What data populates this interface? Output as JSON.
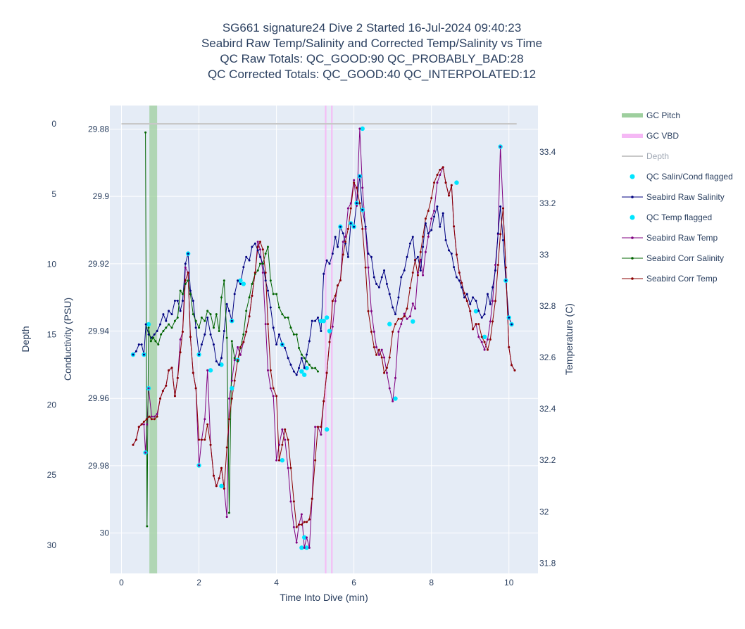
{
  "chart_data": {
    "type": "line",
    "title_lines": [
      "SG661 signature24 Dive 2 Started 16-Jul-2024 09:40:23",
      "Seabird Raw Temp/Salinity and Corrected Temp/Salinity vs Time",
      "QC Raw Totals: QC_GOOD:90 QC_PROBABLY_BAD:28",
      "QC Corrected Totals: QC_GOOD:40 QC_INTERPOLATED:12"
    ],
    "xlabel": "Time Into Dive (min)",
    "y_depth_label": "Depth",
    "y_cond_label": "Conductivity (PSU)",
    "y_temp_label": "Temperature (C)",
    "xlim": [
      -0.3,
      10.75
    ],
    "depth_lim": [
      32,
      -1.3
    ],
    "salinity_lim": [
      30.012,
      29.873
    ],
    "temp_lim": [
      31.76,
      33.58
    ],
    "x_ticks": [
      "0",
      "2",
      "4",
      "6",
      "8",
      "10"
    ],
    "depth_ticks": [
      "0",
      "5",
      "10",
      "15",
      "20",
      "25",
      "30"
    ],
    "salinity_ticks": [
      "29.88",
      "29.9",
      "29.92",
      "29.94",
      "29.96",
      "29.98",
      "30"
    ],
    "temp_ticks": [
      "31.8",
      "32",
      "32.2",
      "32.4",
      "32.6",
      "32.8",
      "33",
      "33.2",
      "33.4"
    ],
    "grid": true,
    "legend_position": "right",
    "legend": [
      "GC Pitch",
      "GC VBD",
      "Depth",
      "QC Salin/Cond flagged",
      "Seabird Raw Salinity",
      "QC Temp flagged",
      "Seabird Raw Temp",
      "Seabird Corr Salinity",
      "Seabird Corr Temp"
    ],
    "colors": {
      "plot_bg": "#e5ecf6",
      "grid": "#ffffff",
      "gc_pitch": "#9ecf9e",
      "gc_vbd": "#f5b8f5",
      "depth": "#c8c8c8",
      "qc_flag": "#00e5ff",
      "raw_salinity": "#000080",
      "raw_temp": "#800080",
      "corr_salinity": "#006400",
      "corr_temp": "#8b0000"
    },
    "gc_pitch_intervals": [
      [
        0.72,
        0.92
      ]
    ],
    "gc_vbd_intervals": [
      [
        5.25,
        5.29
      ],
      [
        5.41,
        5.45
      ]
    ],
    "depth_series": {
      "x": [
        0.0,
        10.2
      ],
      "y": [
        0.0,
        0.0
      ]
    },
    "raw_salinity": {
      "x": [
        0.3,
        0.38,
        0.45,
        0.52,
        0.58,
        0.63,
        0.7,
        0.78,
        0.85,
        0.92,
        1.0,
        1.08,
        1.15,
        1.22,
        1.3,
        1.38,
        1.45,
        1.52,
        1.58,
        1.65,
        1.72,
        1.78,
        1.85,
        1.92,
        2.0,
        2.07,
        2.15,
        2.22,
        2.3,
        2.38,
        2.45,
        2.52,
        2.58,
        2.65,
        2.72,
        2.78,
        2.85,
        2.92,
        3.0,
        3.07,
        3.15,
        3.22,
        3.3,
        3.37,
        3.45,
        3.52,
        3.58,
        3.65,
        3.72,
        3.78,
        3.85,
        3.92,
        4.0,
        4.07,
        4.15,
        4.22,
        4.3,
        4.37,
        4.45,
        4.52,
        4.58,
        4.65,
        4.72,
        4.78,
        4.85,
        4.92,
        5.0,
        5.07,
        5.15,
        5.22,
        5.3,
        5.37,
        5.45,
        5.52,
        5.58,
        5.65,
        5.72,
        5.78,
        5.85,
        5.92,
        6.0,
        6.07,
        6.15,
        6.22,
        6.3,
        6.37,
        6.45,
        6.52,
        6.58,
        6.65,
        6.72,
        6.78,
        6.85,
        6.92,
        7.0,
        7.07,
        7.15,
        7.22,
        7.3,
        7.37,
        7.45,
        7.52,
        7.58,
        7.65,
        7.72,
        7.78,
        7.85,
        7.92,
        8.0,
        8.07,
        8.15,
        8.22,
        8.3,
        8.37,
        8.45,
        8.52,
        8.58,
        8.65,
        8.72,
        8.78,
        8.85,
        8.92,
        9.0,
        9.07,
        9.15,
        9.22,
        9.3,
        9.37,
        9.45,
        9.52,
        9.58,
        9.65,
        9.72,
        9.78,
        9.85,
        9.92,
        10.0,
        10.07
      ],
      "y": [
        29.947,
        29.946,
        29.944,
        29.944,
        29.947,
        29.938,
        29.941,
        29.942,
        29.941,
        29.94,
        29.938,
        29.935,
        29.937,
        29.934,
        29.935,
        29.931,
        29.931,
        29.934,
        29.931,
        29.92,
        29.917,
        29.928,
        29.931,
        29.939,
        29.947,
        29.944,
        29.941,
        29.936,
        29.941,
        29.944,
        29.949,
        29.95,
        29.948,
        29.94,
        29.932,
        29.934,
        29.937,
        29.929,
        29.925,
        29.926,
        29.921,
        29.918,
        29.919,
        29.915,
        29.914,
        29.916,
        29.918,
        29.92,
        29.925,
        29.928,
        29.933,
        29.939,
        29.944,
        29.941,
        29.944,
        29.945,
        29.948,
        29.95,
        29.952,
        29.953,
        29.951,
        29.948,
        29.951,
        29.947,
        29.943,
        29.937,
        29.937,
        29.936,
        29.94,
        29.923,
        29.919,
        29.92,
        29.917,
        29.912,
        29.915,
        29.909,
        29.911,
        29.914,
        29.918,
        29.908,
        29.909,
        29.902,
        29.894,
        29.904,
        29.909,
        29.917,
        29.918,
        29.924,
        29.926,
        29.927,
        29.924,
        29.922,
        29.926,
        29.929,
        29.933,
        29.935,
        29.93,
        29.924,
        29.922,
        29.918,
        29.914,
        29.912,
        29.919,
        29.918,
        29.922,
        29.915,
        29.908,
        29.911,
        29.91,
        29.906,
        29.903,
        29.909,
        29.905,
        29.913,
        29.916,
        29.917,
        29.921,
        29.924,
        29.925,
        29.927,
        29.93,
        29.929,
        29.932,
        29.93,
        29.931,
        29.934,
        29.936,
        29.935,
        29.929,
        29.932,
        29.927,
        29.922,
        29.911,
        29.903,
        29.913,
        29.925,
        29.936,
        29.938
      ]
    },
    "raw_temp": {
      "x": [
        0.3,
        0.38,
        0.45,
        0.52,
        0.58,
        0.62,
        0.66,
        0.7,
        0.78,
        0.85,
        0.92,
        1.0,
        1.07,
        1.15,
        1.22,
        1.3,
        1.38,
        1.45,
        1.52,
        1.58,
        1.65,
        1.72,
        1.78,
        1.85,
        1.92,
        2.0,
        2.07,
        2.15,
        2.22,
        2.3,
        2.38,
        2.45,
        2.52,
        2.58,
        2.65,
        2.72,
        2.78,
        2.85,
        2.92,
        3.0,
        3.07,
        3.15,
        3.22,
        3.3,
        3.37,
        3.45,
        3.52,
        3.58,
        3.65,
        3.72,
        3.78,
        3.85,
        3.92,
        4.0,
        4.07,
        4.15,
        4.22,
        4.3,
        4.37,
        4.45,
        4.52,
        4.58,
        4.65,
        4.72,
        4.78,
        4.85,
        4.92,
        5.0,
        5.07,
        5.15,
        5.22,
        5.3,
        5.37,
        5.45,
        5.52,
        5.58,
        5.65,
        5.72,
        5.78,
        5.85,
        5.92,
        6.0,
        6.07,
        6.15,
        6.22,
        6.3,
        6.37,
        6.45,
        6.52,
        6.58,
        6.65,
        6.72,
        6.78,
        6.85,
        6.92,
        7.0,
        7.07,
        7.15,
        7.22,
        7.3,
        7.37,
        7.45,
        7.52,
        7.58,
        7.65,
        7.72,
        7.78,
        7.85,
        7.92,
        8.0,
        8.07,
        8.15,
        8.22,
        8.3,
        8.37,
        8.45,
        8.52,
        8.58,
        8.65,
        8.72,
        8.78,
        8.85,
        8.92,
        9.0,
        9.07,
        9.15,
        9.22,
        9.3,
        9.37,
        9.45,
        9.52,
        9.58,
        9.65,
        9.72,
        9.78,
        9.85,
        9.92,
        10.0,
        10.07,
        10.15
      ],
      "y": [
        32.26,
        32.28,
        32.33,
        32.34,
        32.34,
        32.23,
        32.34,
        32.48,
        32.37,
        32.37,
        32.38,
        32.44,
        32.47,
        32.49,
        32.55,
        32.56,
        32.45,
        32.52,
        32.67,
        32.7,
        32.95,
        32.93,
        32.68,
        32.54,
        32.48,
        32.18,
        32.28,
        32.36,
        32.55,
        32.26,
        32.14,
        32.1,
        32.13,
        32.17,
        32.09,
        31.98,
        32.44,
        32.51,
        32.59,
        32.64,
        32.61,
        32.66,
        32.7,
        32.76,
        32.84,
        32.93,
        33.05,
        33.02,
        32.93,
        32.73,
        32.55,
        32.48,
        32.45,
        32.2,
        32.26,
        32.32,
        32.28,
        32.17,
        32.04,
        31.94,
        31.88,
        31.95,
        31.99,
        31.86,
        31.9,
        31.86,
        32.05,
        32.33,
        32.33,
        32.3,
        32.43,
        32.54,
        32.66,
        32.72,
        32.82,
        32.88,
        32.9,
        33.05,
        33.07,
        33.18,
        33.2,
        33.29,
        33.19,
        33.49,
        33.26,
        33.1,
        32.95,
        32.78,
        32.7,
        32.64,
        32.61,
        32.63,
        32.6,
        32.54,
        32.48,
        32.43,
        32.52,
        32.7,
        32.73,
        32.77,
        32.75,
        32.76,
        32.81,
        32.79,
        32.93,
        32.98,
        32.92,
        33.01,
        33.07,
        33.14,
        33.17,
        33.28,
        33.31,
        33.34,
        33.28,
        33.23,
        33.27,
        33.11,
        33.0,
        32.93,
        32.89,
        32.85,
        32.82,
        32.78,
        32.71,
        32.73,
        32.68,
        32.66,
        32.63,
        32.67,
        32.74,
        32.82,
        32.96,
        33.08,
        33.42,
        33.18,
        32.95,
        32.64,
        32.57,
        32.55
      ]
    },
    "corr_salinity": {
      "x": [
        0.62,
        0.66,
        0.7,
        0.76,
        0.82,
        0.88,
        0.95,
        1.02,
        1.08,
        1.15,
        1.22,
        1.3,
        1.38,
        1.45,
        1.52,
        1.58,
        1.65,
        1.72,
        1.78,
        1.85,
        1.92,
        2.0,
        2.07,
        2.15,
        2.22,
        2.3,
        2.38,
        2.45,
        2.52,
        2.58,
        2.65,
        2.72,
        2.78,
        2.85,
        2.92,
        3.0,
        3.07,
        3.15,
        3.22,
        3.3,
        3.37,
        3.45,
        3.52,
        3.58,
        3.65,
        3.72,
        3.78,
        3.85,
        3.92,
        4.0,
        4.07,
        4.15,
        4.22,
        4.3,
        4.37,
        4.45,
        4.52,
        4.58,
        4.65,
        4.72,
        4.78,
        4.85,
        4.92,
        5.0,
        5.07
      ],
      "y": [
        29.881,
        29.998,
        29.939,
        29.943,
        29.942,
        29.943,
        29.944,
        29.941,
        29.94,
        29.939,
        29.938,
        29.939,
        29.937,
        29.936,
        29.928,
        29.929,
        29.926,
        29.925,
        29.929,
        29.935,
        29.937,
        29.939,
        29.936,
        29.937,
        29.934,
        29.935,
        29.939,
        29.935,
        29.94,
        29.93,
        29.925,
        29.942,
        29.994,
        29.943,
        29.948,
        29.949,
        29.945,
        29.941,
        29.934,
        29.93,
        29.926,
        29.923,
        29.922,
        29.92,
        29.92,
        29.917,
        29.915,
        29.925,
        29.929,
        29.929,
        29.933,
        29.935,
        29.936,
        29.936,
        29.939,
        29.941,
        29.941,
        29.945,
        29.947,
        29.948,
        29.949,
        29.95,
        29.951,
        29.951,
        29.952
      ]
    },
    "corr_temp": {
      "x": [
        0.3,
        0.38,
        0.45,
        0.52,
        0.58,
        0.65,
        0.72,
        0.78,
        0.85,
        0.92,
        1.0,
        1.07,
        1.15,
        1.22,
        1.3,
        1.38,
        1.45,
        1.52,
        1.58,
        1.65,
        1.72,
        1.78,
        1.85,
        1.92,
        2.0,
        2.07,
        2.15,
        2.22,
        2.3,
        2.38,
        2.45,
        2.52,
        2.58,
        2.65,
        2.72,
        2.78,
        2.85,
        2.92,
        3.0,
        3.07,
        3.15,
        3.22,
        3.3,
        3.37,
        3.45,
        3.52,
        3.58,
        3.65,
        3.72,
        3.78,
        3.85,
        3.92,
        4.0,
        4.07,
        4.15,
        4.22,
        4.3,
        4.37,
        4.45,
        4.52,
        4.58,
        4.65,
        4.72,
        4.78,
        4.85,
        4.92,
        5.0,
        5.07,
        5.15,
        5.22,
        5.3,
        5.37,
        5.45,
        5.52,
        5.58,
        5.65,
        5.72,
        5.78,
        5.85,
        5.92,
        6.0,
        6.07,
        6.15,
        6.22,
        6.3,
        6.37,
        6.45,
        6.52,
        6.58,
        6.65,
        6.72,
        6.78,
        6.85,
        6.92,
        7.0,
        7.07,
        7.15,
        7.22,
        7.3,
        7.37,
        7.45,
        7.52,
        7.58,
        7.65,
        7.72,
        7.78,
        7.85,
        7.92,
        8.0,
        8.07,
        8.15,
        8.22,
        8.3,
        8.37,
        8.45,
        8.52,
        8.58,
        8.65,
        8.72,
        8.78,
        8.85,
        8.92,
        9.0,
        9.07,
        9.15,
        9.22,
        9.3,
        9.37,
        9.45,
        9.52,
        9.58,
        9.65,
        9.72,
        9.78,
        9.85,
        9.92,
        10.0,
        10.07,
        10.15
      ],
      "y": [
        32.26,
        32.28,
        32.33,
        32.34,
        32.35,
        32.36,
        32.37,
        32.36,
        32.36,
        32.37,
        32.44,
        32.47,
        32.49,
        32.55,
        32.56,
        32.45,
        32.52,
        32.62,
        32.7,
        32.9,
        32.93,
        32.68,
        32.54,
        32.48,
        32.28,
        32.28,
        32.28,
        32.34,
        32.26,
        32.14,
        32.1,
        32.13,
        32.17,
        32.09,
        32.25,
        32.36,
        32.44,
        32.51,
        32.59,
        32.64,
        32.66,
        32.7,
        32.76,
        32.84,
        32.93,
        33.03,
        33.05,
        33.02,
        32.93,
        32.73,
        32.55,
        32.48,
        32.45,
        32.2,
        32.26,
        32.32,
        32.28,
        32.17,
        32.04,
        31.94,
        31.95,
        31.95,
        31.96,
        31.96,
        31.97,
        32.05,
        32.2,
        32.33,
        32.33,
        32.43,
        32.54,
        32.66,
        32.82,
        32.84,
        32.88,
        32.9,
        33.0,
        33.05,
        33.1,
        33.18,
        33.28,
        33.26,
        33.2,
        33.1,
        32.95,
        32.78,
        32.7,
        32.64,
        32.61,
        32.63,
        32.6,
        32.54,
        32.56,
        32.6,
        32.7,
        32.73,
        32.75,
        32.75,
        32.76,
        32.79,
        32.87,
        32.93,
        32.98,
        32.92,
        33.01,
        33.07,
        33.14,
        33.17,
        33.22,
        33.28,
        33.31,
        33.33,
        33.34,
        33.28,
        33.23,
        33.27,
        33.11,
        33.0,
        32.93,
        32.89,
        32.85,
        32.82,
        32.78,
        32.71,
        32.73,
        32.73,
        32.68,
        32.66,
        32.63,
        32.67,
        32.74,
        32.82,
        32.96,
        33.08,
        33.18,
        32.95,
        32.64,
        32.57,
        32.55
      ]
    },
    "qc_salinity_flagged": {
      "x": [
        0.3,
        0.58,
        0.7,
        1.72,
        2.0,
        2.58,
        2.85,
        3.07,
        3.15,
        4.15,
        4.65,
        4.72,
        4.78,
        5.15,
        5.22,
        5.3,
        5.37,
        5.65,
        5.92,
        6.0,
        6.07,
        6.15,
        6.22,
        9.92,
        10.0,
        10.07
      ],
      "y": [
        29.947,
        29.947,
        29.938,
        29.917,
        29.947,
        29.95,
        29.937,
        29.925,
        29.926,
        29.944,
        29.952,
        29.953,
        29.951,
        29.937,
        29.937,
        29.936,
        29.94,
        29.909,
        29.908,
        29.909,
        29.902,
        29.894,
        29.904,
        29.925,
        29.936,
        29.938
      ]
    },
    "qc_temp_flagged": {
      "x": [
        0.62,
        0.7,
        2.0,
        2.3,
        2.58,
        2.85,
        3.0,
        4.15,
        4.65,
        4.72,
        4.78,
        5.3,
        6.22,
        6.92,
        7.07,
        7.52,
        8.65,
        9.15,
        9.37,
        9.78
      ],
      "y": [
        32.23,
        32.48,
        32.18,
        32.55,
        32.1,
        32.48,
        32.59,
        32.2,
        31.86,
        31.9,
        31.86,
        32.32,
        33.49,
        32.73,
        32.44,
        32.74,
        33.28,
        32.78,
        32.68,
        33.42
      ]
    }
  }
}
